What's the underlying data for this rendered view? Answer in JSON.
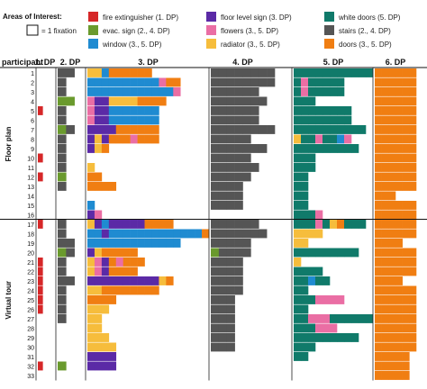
{
  "chart_data": {
    "type": "heatmap",
    "legend_title": "Areas of Interest:",
    "one_fixation_label": "= 1 fixation",
    "column_header_label": "participant",
    "columns": [
      {
        "id": "dp1",
        "label": "1. DP",
        "slots": 3
      },
      {
        "id": "dp2",
        "label": "2. DP",
        "slots": 3
      },
      {
        "id": "dp3",
        "label": "3. DP",
        "slots": 17
      },
      {
        "id": "dp4",
        "label": "4. DP",
        "slots": 8
      },
      {
        "id": "dp5",
        "label": "5. DP",
        "slots": 11
      },
      {
        "id": "dp6",
        "label": "6. DP",
        "slots": 6
      }
    ],
    "categories": [
      {
        "code": "F",
        "label": "fire extinguisher (1. DP)",
        "color": "#d62728"
      },
      {
        "code": "L",
        "label": "floor level sign (3. DP)",
        "color": "#5b2aa6"
      },
      {
        "code": "W",
        "label": "white doors (5. DP)",
        "color": "#107a6a"
      },
      {
        "code": "E",
        "label": "evac. sign (2., 4. DP)",
        "color": "#6a9a2d"
      },
      {
        "code": "P",
        "label": "flowers (3., 5. DP)",
        "color": "#ea6ea4"
      },
      {
        "code": "S",
        "label": "stairs (2., 4. DP)",
        "color": "#555555"
      },
      {
        "code": "B",
        "label": "window (3., 5. DP)",
        "color": "#1f8bd1"
      },
      {
        "code": "Y",
        "label": "radiator (3., 5. DP)",
        "color": "#f6bd3c"
      },
      {
        "code": "O",
        "label": "doors (3., 5. DP)",
        "color": "#f07e12"
      }
    ],
    "groups": [
      {
        "label": "Floor plan",
        "participants": [
          1,
          16
        ]
      },
      {
        "label": "Virtual tour",
        "participants": [
          17,
          33
        ]
      }
    ],
    "participants": [
      {
        "id": "1",
        "dp1": "",
        "dp2": "SS",
        "dp3": "YYBOOOOOO",
        "dp4": "SSSSSSSS",
        "dp5": "WWWWWWWWWWW",
        "dp6": "OOOOOO"
      },
      {
        "id": "2",
        "dp1": "",
        "dp2": "S",
        "dp3": "BBBBBBBBBBPOO",
        "dp4": "SSSSSSSS",
        "dp5": "WPWWWWW",
        "dp6": "OOOOOO"
      },
      {
        "id": "3",
        "dp1": "",
        "dp2": "S",
        "dp3": "BBBBBBBBBBBBP",
        "dp4": "SSSSSS",
        "dp5": "WPWWWWW",
        "dp6": "OOOOOO"
      },
      {
        "id": "4",
        "dp1": "",
        "dp2": "EE",
        "dp3": "PLLYYYYOOOO",
        "dp4": "SSSSSSS",
        "dp5": "WWW",
        "dp6": "OOOOOO"
      },
      {
        "id": "5",
        "dp1": "F",
        "dp2": "S",
        "dp3": "PLLBBBBBBB",
        "dp4": "SSSSSS",
        "dp5": "WWWWWWWW",
        "dp6": "OOOOOO"
      },
      {
        "id": "6",
        "dp1": "",
        "dp2": "S",
        "dp3": "PLLBBBBBBB",
        "dp4": "SSSSSS",
        "dp5": "WWWWWWWW",
        "dp6": "OOOOOO"
      },
      {
        "id": "7",
        "dp1": "",
        "dp2": "ES",
        "dp3": "LLLLOOOOOO",
        "dp4": "SSSSSSSS",
        "dp5": "WWWWWWWWWW",
        "dp6": "OOOOOO"
      },
      {
        "id": "8",
        "dp1": "",
        "dp2": "S",
        "dp3": "LYLOOOPOOO",
        "dp4": "SSSSS",
        "dp5": "YWWPWWBP",
        "dp6": "OOOOOO"
      },
      {
        "id": "9",
        "dp1": "",
        "dp2": "S",
        "dp3": "LYO",
        "dp4": "SSSSSSS",
        "dp5": "WWWWWWWWW",
        "dp6": "OOOOOO"
      },
      {
        "id": "10",
        "dp1": "F",
        "dp2": "S",
        "dp3": "",
        "dp4": "SSSSS",
        "dp5": "WWW",
        "dp6": "OOOOOO"
      },
      {
        "id": "11",
        "dp1": "",
        "dp2": "S",
        "dp3": "Y",
        "dp4": "SSSSSS",
        "dp5": "WWW",
        "dp6": "OOOOOO"
      },
      {
        "id": "12",
        "dp1": "F",
        "dp2": "E",
        "dp3": "OO",
        "dp4": "SSSSS",
        "dp5": "WW",
        "dp6": "OOOOOO"
      },
      {
        "id": "13",
        "dp1": "",
        "dp2": "S",
        "dp3": "OOOO",
        "dp4": "SSSS",
        "dp5": "WW",
        "dp6": "OOOOOO"
      },
      {
        "id": "14",
        "dp1": "",
        "dp2": "",
        "dp3": "",
        "dp4": "SSSS",
        "dp5": "WW",
        "dp6": "OOO"
      },
      {
        "id": "15",
        "dp1": "",
        "dp2": "",
        "dp3": "B",
        "dp4": "SSSS",
        "dp5": "WW",
        "dp6": "OOOOOO"
      },
      {
        "id": "16",
        "dp1": "",
        "dp2": "",
        "dp3": "LP",
        "dp4": "",
        "dp5": "WWWP",
        "dp6": "OOOOOO"
      },
      {
        "id": "17",
        "dp1": "F",
        "dp2": "S",
        "dp3": "YLBLLLLLOOOO",
        "dp4": "SSSSSS",
        "dp5": "WWWPWYOWWW",
        "dp6": "OOOOOO"
      },
      {
        "id": "18",
        "dp1": "",
        "dp2": "S",
        "dp3": "BBLBBBBBBBBBBBBBO",
        "dp4": "SSSSSSS",
        "dp5": "YYYY",
        "dp6": "OOOOOO"
      },
      {
        "id": "19",
        "dp1": "",
        "dp2": "SS",
        "dp3": "BBBBBBBBBBBBB",
        "dp4": "SSSSS",
        "dp5": "YY",
        "dp6": "OOOO"
      },
      {
        "id": "20",
        "dp1": "",
        "dp2": "ES",
        "dp3": "LYOOOOO",
        "dp4": "ESSSS",
        "dp5": "WWWWWWWWW",
        "dp6": "OOOOOO"
      },
      {
        "id": "21",
        "dp1": "F",
        "dp2": "S",
        "dp3": "YPLOPOOO",
        "dp4": "SSSS",
        "dp5": "Y",
        "dp6": "OOOOOO"
      },
      {
        "id": "22",
        "dp1": "F",
        "dp2": "S",
        "dp3": "YPLOOOO",
        "dp4": "SSSS",
        "dp5": "WWWW",
        "dp6": "OOOOOO"
      },
      {
        "id": "23",
        "dp1": "F",
        "dp2": "SS",
        "dp3": "LLLLLLLLLLYO",
        "dp4": "SSSS",
        "dp5": "WWBWW",
        "dp6": "OOOO"
      },
      {
        "id": "24",
        "dp1": "F",
        "dp2": "S",
        "dp3": "YYOOOOOOOO",
        "dp4": "SSSS",
        "dp5": "WW",
        "dp6": "OOOOOO"
      },
      {
        "id": "25",
        "dp1": "F",
        "dp2": "S",
        "dp3": "OOOO",
        "dp4": "SSS",
        "dp5": "WWWPPPP",
        "dp6": "OOOOOO"
      },
      {
        "id": "26",
        "dp1": "F",
        "dp2": "S",
        "dp3": "YYY",
        "dp4": "SSS",
        "dp5": "WW",
        "dp6": "OOOOOO"
      },
      {
        "id": "27",
        "dp1": "",
        "dp2": "S",
        "dp3": "YY",
        "dp4": "SSS",
        "dp5": "WWPPPWWWWWW",
        "dp6": "OOOOOO"
      },
      {
        "id": "28",
        "dp1": "",
        "dp2": "",
        "dp3": "YY",
        "dp4": "SSS",
        "dp5": "WWWPPP",
        "dp6": "OOOOOO"
      },
      {
        "id": "29",
        "dp1": "",
        "dp2": "",
        "dp3": "YYY",
        "dp4": "SSS",
        "dp5": "WWWWWWWWW",
        "dp6": "OOOOOO"
      },
      {
        "id": "30",
        "dp1": "",
        "dp2": "",
        "dp3": "YYYY",
        "dp4": "SSS",
        "dp5": "WWW",
        "dp6": "OOOOOO"
      },
      {
        "id": "31",
        "dp1": "",
        "dp2": "",
        "dp3": "LLLL",
        "dp4": "",
        "dp5": "WW",
        "dp6": "OOOOO"
      },
      {
        "id": "32",
        "dp1": "F",
        "dp2": "E",
        "dp3": "LLLL",
        "dp4": "",
        "dp5": "",
        "dp6": "OOOOO"
      },
      {
        "id": "33",
        "dp1": "",
        "dp2": "",
        "dp3": "",
        "dp4": "",
        "dp5": "",
        "dp6": "OOOOO"
      }
    ]
  }
}
